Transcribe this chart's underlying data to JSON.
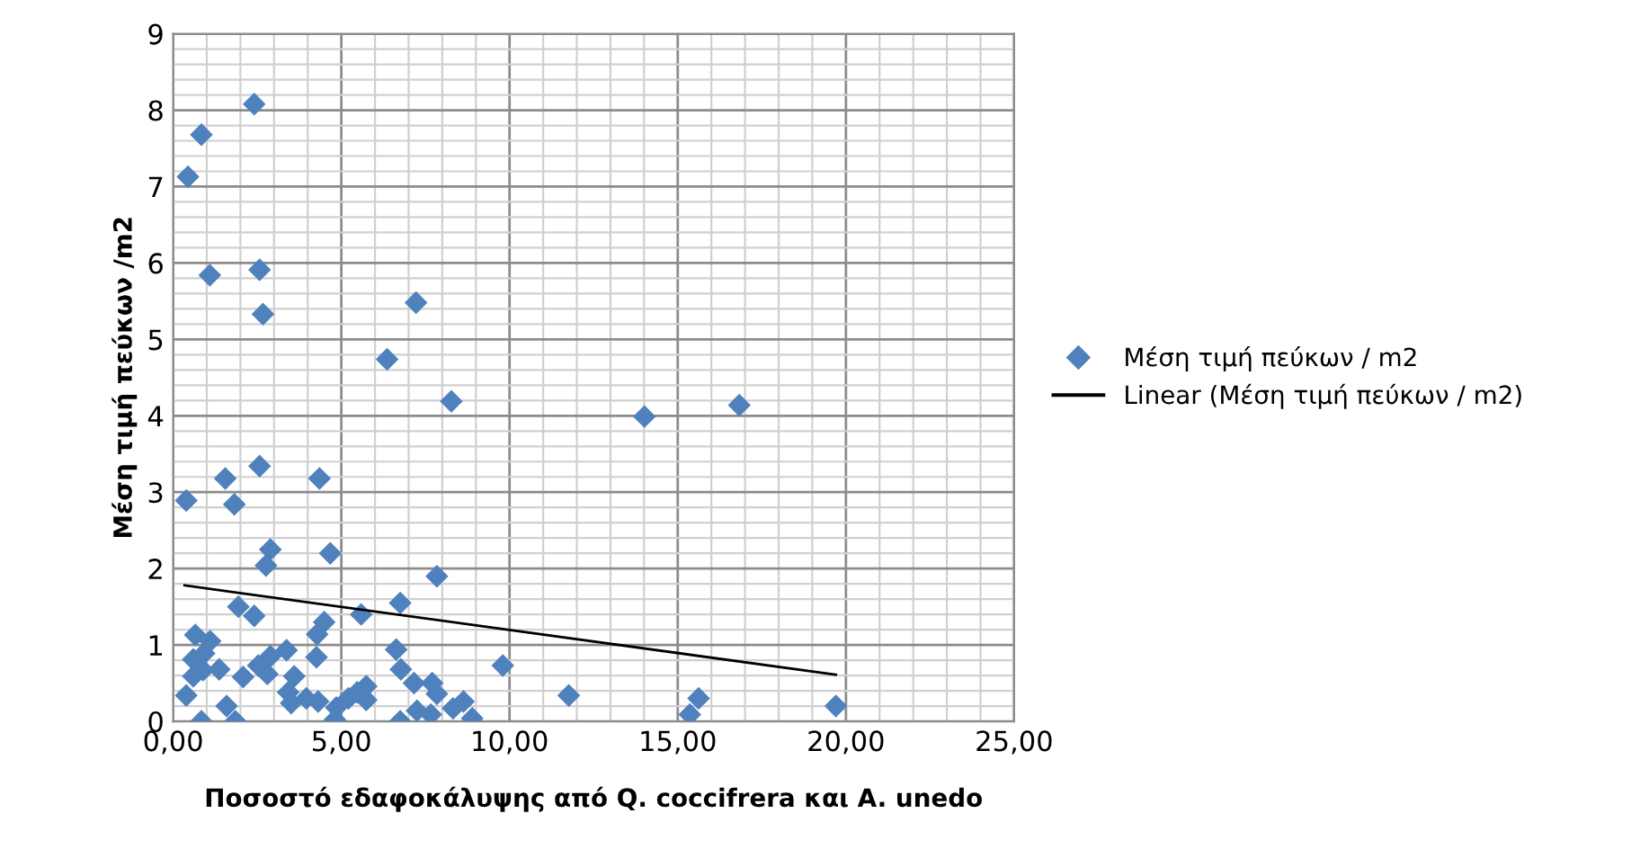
{
  "chart_data": {
    "type": "scatter",
    "xlabel": "Ποσοστό εδαφοκάλυψης από Q. coccifrera και A. unedo",
    "ylabel": "Μέση τιμή πεύκων /m2",
    "series": [
      {
        "name": "Μέση τιμή πεύκων / m2",
        "color": "#4f81bd",
        "marker": "diamond",
        "x": [
          0.44,
          0.84,
          2.41,
          1.09,
          2.57,
          2.67,
          7.22,
          6.36,
          8.27,
          1.55,
          2.57,
          4.35,
          0.39,
          1.82,
          2.89,
          2.76,
          4.67,
          7.84,
          1.94,
          2.41,
          4.49,
          4.28,
          5.59,
          6.75,
          0.66,
          1.1,
          0.6,
          0.92,
          1.37,
          0.6,
          0.89,
          2.08,
          2.53,
          2.89,
          3.37,
          2.8,
          3.6,
          4.26,
          6.63,
          6.77,
          0.39,
          3.42,
          3.51,
          3.96,
          4.31,
          4.85,
          5.21,
          5.47,
          5.74,
          5.74,
          7.16,
          7.7,
          7.84,
          7.25,
          7.66,
          8.32,
          8.63,
          8.89,
          9.8,
          11.76,
          0.84,
          1.59,
          1.85,
          4.81,
          6.75,
          14.01,
          16.83,
          15.62,
          15.36,
          19.7
        ],
        "values": [
          7.13,
          7.68,
          8.08,
          5.84,
          5.91,
          5.33,
          5.48,
          4.74,
          4.19,
          3.18,
          3.34,
          3.18,
          2.89,
          2.84,
          2.25,
          2.04,
          2.2,
          1.9,
          1.5,
          1.38,
          1.3,
          1.14,
          1.4,
          1.55,
          1.13,
          1.05,
          0.81,
          0.89,
          0.68,
          0.59,
          0.67,
          0.58,
          0.73,
          0.85,
          0.93,
          0.62,
          0.59,
          0.84,
          0.94,
          0.68,
          0.34,
          0.38,
          0.24,
          0.3,
          0.26,
          0.18,
          0.3,
          0.38,
          0.46,
          0.28,
          0.5,
          0.5,
          0.36,
          0.14,
          0.09,
          0.17,
          0.26,
          0.04,
          0.73,
          0.34,
          0.0,
          0.2,
          0.0,
          0.02,
          0.0,
          3.99,
          4.14,
          0.3,
          0.09,
          0.2
        ]
      },
      {
        "name": "Linear (Μέση τιμή πεύκων / m2)",
        "type": "line",
        "color": "#000000",
        "marker": "none",
        "line_style": "solid",
        "x": [
          0.34,
          19.7
        ],
        "values": [
          1.78,
          0.61
        ]
      }
    ],
    "xlim": [
      0,
      25
    ],
    "xticks": [
      {
        "value": 0,
        "label": "0,00"
      },
      {
        "value": 5,
        "label": "5,00"
      },
      {
        "value": 10,
        "label": "10,00"
      },
      {
        "value": 15,
        "label": "15,00"
      },
      {
        "value": 20,
        "label": "20,00"
      },
      {
        "value": 25,
        "label": "25,00"
      }
    ],
    "ylim": [
      0,
      9
    ],
    "yticks": [
      0,
      1,
      2,
      3,
      4,
      5,
      6,
      7,
      8,
      9
    ],
    "grid": true,
    "legend": "right"
  }
}
